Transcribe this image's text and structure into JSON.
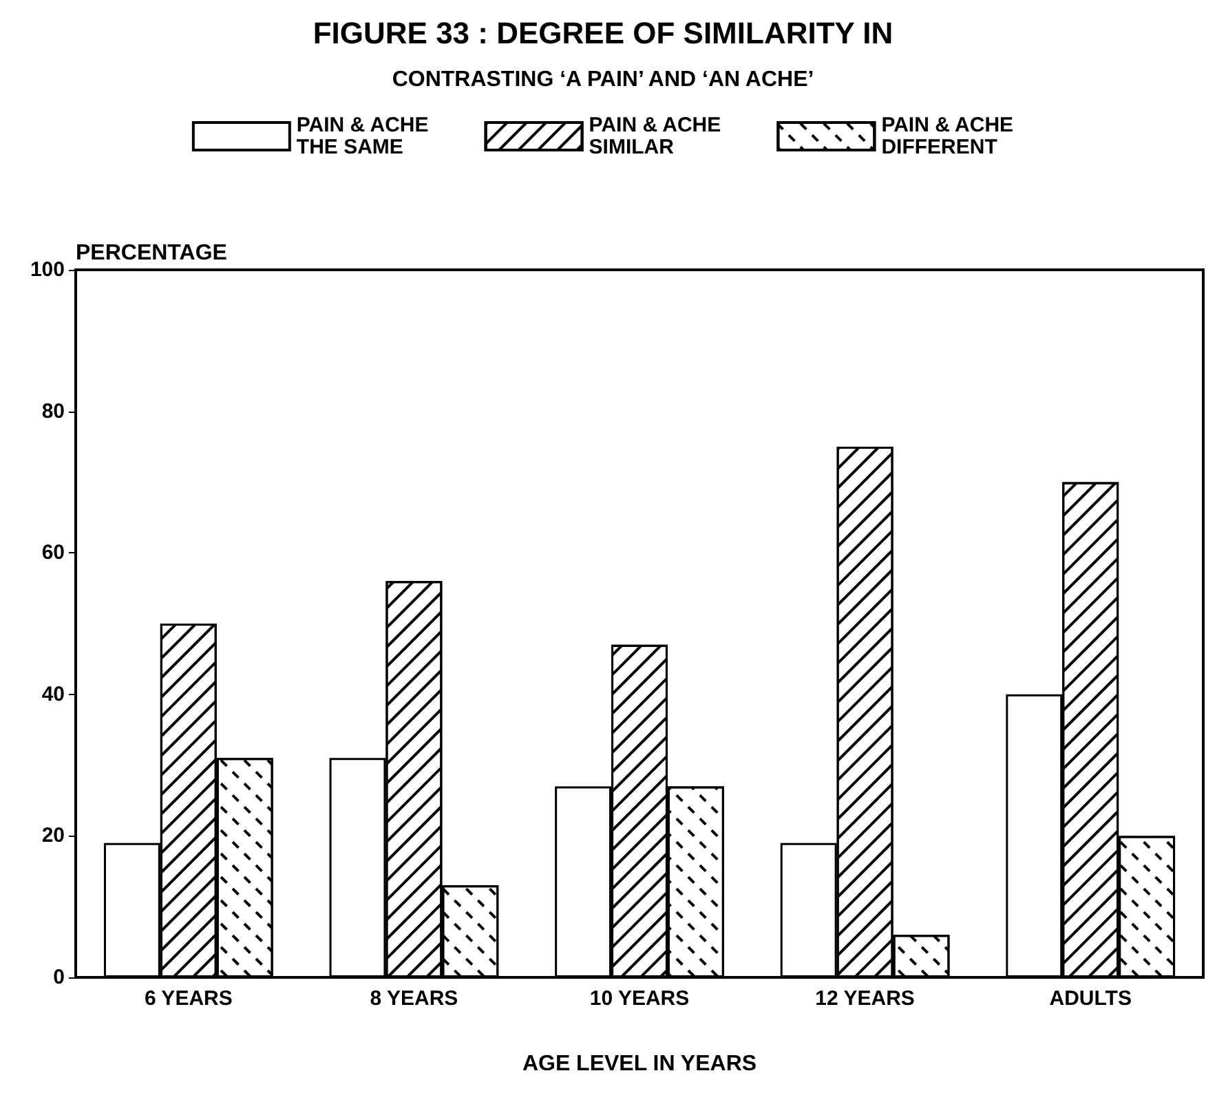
{
  "chart_data": {
    "type": "bar",
    "title": "FIGURE 33 : DEGREE OF SIMILARITY IN",
    "subtitle": "CONTRASTING ‘A PAIN’ AND ‘AN ACHE’",
    "xlabel": "AGE LEVEL IN YEARS",
    "ylabel": "PERCENTAGE",
    "categories": [
      "6 YEARS",
      "8 YEARS",
      "10 YEARS",
      "12 YEARS",
      "ADULTS"
    ],
    "series": [
      {
        "name": "PAIN & ACHE\nTHE SAME",
        "color": "#ffffff",
        "values": [
          19,
          31,
          27,
          19,
          40
        ]
      },
      {
        "name": "PAIN & ACHE\nSIMILAR",
        "color": "#ffffff",
        "values": [
          50,
          56,
          47,
          75,
          70
        ]
      },
      {
        "name": "PAIN & ACHE\nDIFFERENT",
        "color": "#ffffff",
        "values": [
          31,
          13,
          27,
          6,
          20
        ]
      }
    ],
    "ylim": [
      0,
      100
    ],
    "yticks": [
      0,
      20,
      40,
      60,
      80,
      100
    ],
    "grid": false,
    "legend": "top"
  }
}
